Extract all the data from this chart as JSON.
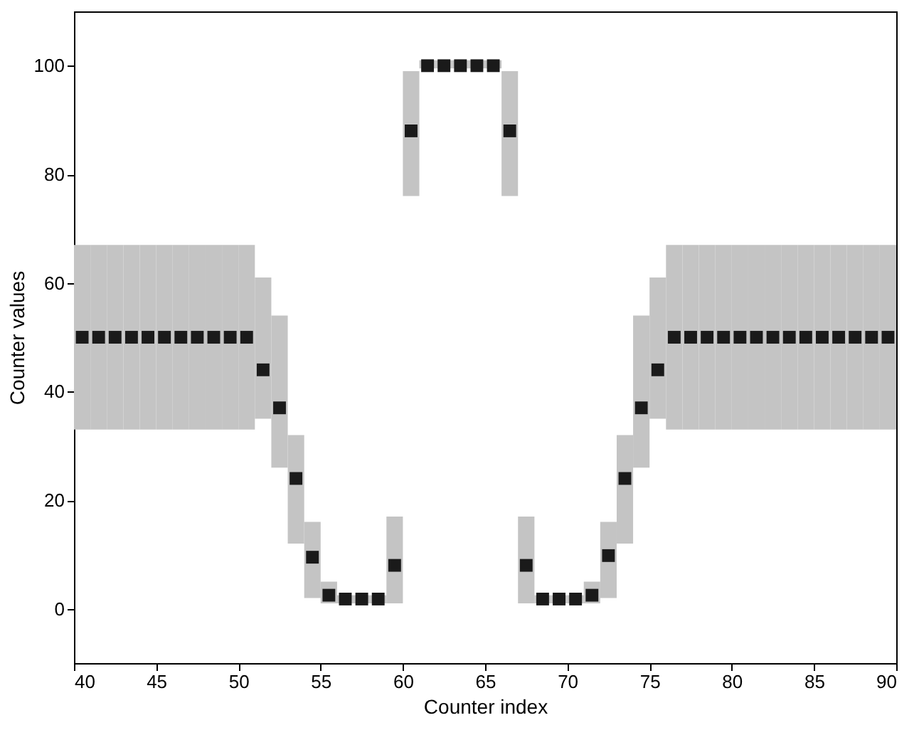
{
  "chart_data": {
    "type": "scatter",
    "xlabel": "Counter index",
    "ylabel": "Counter values",
    "x": [
      40.5,
      41.5,
      42.5,
      43.5,
      44.5,
      45.5,
      46.5,
      47.5,
      48.5,
      49.5,
      50.5,
      51.5,
      52.5,
      53.5,
      54.5,
      55.5,
      56.5,
      57.5,
      58.5,
      59.5,
      60.5,
      61.5,
      62.5,
      63.5,
      64.5,
      65.5,
      66.5,
      67.5,
      68.5,
      69.5,
      70.5,
      71.5,
      72.5,
      73.5,
      74.5,
      75.5,
      76.5,
      77.5,
      78.5,
      79.5,
      80.5,
      81.5,
      82.5,
      83.5,
      84.5,
      85.5,
      86.5,
      87.5,
      88.5,
      89.5
    ],
    "values": [
      50,
      50,
      50,
      50,
      50,
      50,
      50,
      50,
      50,
      50,
      50,
      44,
      37,
      24,
      9.5,
      2.5,
      1.8,
      1.8,
      1.8,
      8,
      88,
      100,
      100,
      100,
      100,
      100,
      88,
      8,
      1.8,
      1.8,
      1.8,
      2.5,
      9.8,
      24,
      37,
      44,
      50,
      50,
      50,
      50,
      50,
      50,
      50,
      50,
      50,
      50,
      50,
      50,
      50,
      50
    ],
    "errors": [
      [
        33,
        67
      ],
      [
        33,
        67
      ],
      [
        33,
        67
      ],
      [
        33,
        67
      ],
      [
        33,
        67
      ],
      [
        33,
        67
      ],
      [
        33,
        67
      ],
      [
        33,
        67
      ],
      [
        33,
        67
      ],
      [
        33,
        67
      ],
      [
        33,
        67
      ],
      [
        35,
        61
      ],
      [
        26,
        54
      ],
      [
        12,
        32
      ],
      [
        2,
        16
      ],
      [
        1,
        5
      ],
      [
        1,
        2.5
      ],
      [
        1,
        2.5
      ],
      [
        1,
        2.5
      ],
      [
        1,
        17
      ],
      [
        76,
        99
      ],
      [
        99.5,
        101
      ],
      [
        99.5,
        101
      ],
      [
        99.5,
        101
      ],
      [
        99.5,
        101
      ],
      [
        99.5,
        101
      ],
      [
        76,
        99
      ],
      [
        1,
        17
      ],
      [
        1,
        2.5
      ],
      [
        1,
        2.5
      ],
      [
        1,
        2.5
      ],
      [
        1,
        5
      ],
      [
        2,
        16
      ],
      [
        12,
        32
      ],
      [
        26,
        54
      ],
      [
        35,
        61
      ],
      [
        33,
        67
      ],
      [
        33,
        67
      ],
      [
        33,
        67
      ],
      [
        33,
        67
      ],
      [
        33,
        67
      ],
      [
        33,
        67
      ],
      [
        33,
        67
      ],
      [
        33,
        67
      ],
      [
        33,
        67
      ],
      [
        33,
        67
      ],
      [
        33,
        67
      ],
      [
        33,
        67
      ],
      [
        33,
        67
      ],
      [
        33,
        67
      ]
    ],
    "color": "#1a1a1a",
    "marker": "square",
    "xlim": [
      40,
      90
    ],
    "ylim": [
      -10,
      110
    ],
    "xticks": [
      40,
      45,
      50,
      55,
      60,
      65,
      70,
      75,
      80,
      85,
      90
    ],
    "yticks": [
      0,
      20,
      40,
      60,
      80,
      100
    ],
    "grid": false
  }
}
